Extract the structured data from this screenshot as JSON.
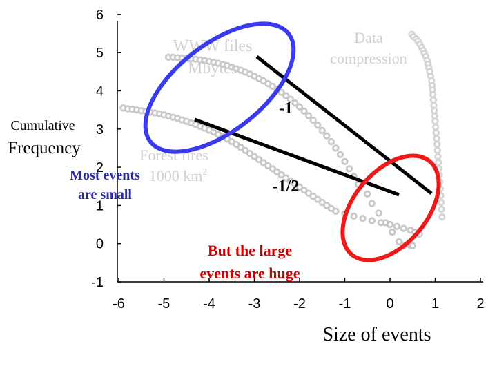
{
  "chart_data": {
    "type": "scatter",
    "title": "",
    "xlabel": "Size of events",
    "ylabel_line1": "Cumulative",
    "ylabel_line2": "Frequency",
    "xlim": [
      -6,
      2
    ],
    "ylim": [
      -1,
      6
    ],
    "xticks": [
      "-6",
      "-5",
      "-4",
      "-3",
      "-2",
      "-1",
      "0",
      "1",
      "2"
    ],
    "yticks": [
      "-1",
      "0",
      "1",
      "2",
      "3",
      "4",
      "5",
      "6"
    ],
    "grid": false,
    "series": [
      {
        "name": "WWW files Mbytes",
        "label_line1": "WWW files",
        "label_line2": "Mbytes",
        "color": "#c8c8c8",
        "x": [
          -4.9,
          -4.8,
          -4.7,
          -4.6,
          -4.5,
          -4.4,
          -4.3,
          -4.2,
          -4.1,
          -4.0,
          -3.9,
          -3.8,
          -3.7,
          -3.6,
          -3.5,
          -3.4,
          -3.3,
          -3.2,
          -3.1,
          -3.0,
          -2.9,
          -2.8,
          -2.7,
          -2.6,
          -2.5,
          -2.4,
          -2.3,
          -2.2,
          -2.1,
          -2.0,
          -1.9,
          -1.8,
          -1.7,
          -1.6,
          -1.5,
          -1.4,
          -1.3,
          -1.2,
          -1.1,
          -1.0,
          -0.9,
          -0.8,
          -0.7,
          -0.5,
          -0.4,
          -0.25,
          -0.1,
          0.05,
          0.2,
          0.3,
          0.45,
          0.5
        ],
        "y": [
          4.88,
          4.88,
          4.87,
          4.86,
          4.85,
          4.84,
          4.83,
          4.81,
          4.79,
          4.77,
          4.75,
          4.72,
          4.69,
          4.66,
          4.62,
          4.58,
          4.54,
          4.49,
          4.44,
          4.38,
          4.32,
          4.26,
          4.19,
          4.12,
          4.04,
          3.96,
          3.87,
          3.78,
          3.68,
          3.58,
          3.47,
          3.35,
          3.23,
          3.1,
          2.96,
          2.82,
          2.67,
          2.5,
          2.33,
          2.15,
          1.96,
          1.76,
          1.55,
          1.3,
          1.05,
          0.8,
          0.55,
          0.3,
          0.05,
          -0.05,
          -0.05,
          -0.05
        ]
      },
      {
        "name": "Forest fires 1000 km2",
        "label_line1": "Forest fires",
        "label_line2": "1000 km",
        "label_sup": "2",
        "color": "#c8c8c8",
        "x": [
          -5.9,
          -5.8,
          -5.7,
          -5.6,
          -5.5,
          -5.4,
          -5.3,
          -5.2,
          -5.1,
          -5.0,
          -4.9,
          -4.8,
          -4.7,
          -4.6,
          -4.5,
          -4.4,
          -4.3,
          -4.2,
          -4.1,
          -4.0,
          -3.9,
          -3.8,
          -3.7,
          -3.6,
          -3.5,
          -3.4,
          -3.3,
          -3.2,
          -3.1,
          -3.0,
          -2.9,
          -2.8,
          -2.7,
          -2.6,
          -2.5,
          -2.4,
          -2.3,
          -2.2,
          -2.1,
          -2.0,
          -1.9,
          -1.8,
          -1.7,
          -1.6,
          -1.5,
          -1.4,
          -1.3,
          -1.2,
          -1.0,
          -0.8,
          -0.6,
          -0.4,
          -0.2,
          0.0,
          0.15,
          0.3,
          0.45,
          0.55,
          0.65
        ],
        "y": [
          3.55,
          3.53,
          3.52,
          3.5,
          3.48,
          3.46,
          3.44,
          3.42,
          3.4,
          3.37,
          3.34,
          3.31,
          3.28,
          3.24,
          3.2,
          3.16,
          3.12,
          3.07,
          3.02,
          2.97,
          2.92,
          2.86,
          2.8,
          2.74,
          2.67,
          2.6,
          2.52,
          2.44,
          2.36,
          2.28,
          2.2,
          2.12,
          2.04,
          1.96,
          1.88,
          1.8,
          1.72,
          1.64,
          1.56,
          1.48,
          1.4,
          1.32,
          1.24,
          1.16,
          1.08,
          1.0,
          0.92,
          0.85,
          0.78,
          0.72,
          0.66,
          0.6,
          0.55,
          0.5,
          0.45,
          0.4,
          0.35,
          0.3,
          0.25
        ]
      },
      {
        "name": "Data compression",
        "label_line1": "Data",
        "label_line2": "compression",
        "color": "#d4d4d4",
        "x": [
          0.48,
          0.52,
          0.58,
          0.62,
          0.66,
          0.7,
          0.73,
          0.76,
          0.79,
          0.82,
          0.84,
          0.86,
          0.88,
          0.9,
          0.92,
          0.93,
          0.94,
          0.95,
          0.96,
          0.97,
          0.98,
          0.99,
          1.0,
          1.01,
          1.02,
          1.03,
          1.04,
          1.05,
          1.06,
          1.07,
          1.08,
          1.09,
          1.1,
          1.11,
          1.12,
          1.13,
          1.14,
          1.15
        ],
        "y": [
          5.48,
          5.42,
          5.36,
          5.3,
          5.22,
          5.14,
          5.06,
          4.98,
          4.9,
          4.8,
          4.7,
          4.6,
          4.5,
          4.38,
          4.26,
          4.14,
          4.02,
          3.9,
          3.76,
          3.62,
          3.48,
          3.34,
          3.2,
          3.05,
          2.9,
          2.75,
          2.6,
          2.44,
          2.28,
          2.12,
          1.96,
          1.8,
          1.62,
          1.44,
          1.26,
          1.08,
          0.9,
          0.7
        ]
      }
    ],
    "annotations": {
      "slope_steep": "-1",
      "slope_shallow": "-1/2",
      "small_events_line1": "Most events",
      "small_events_line2": "are small",
      "large_events_line1": "But the large",
      "large_events_line2": "events are huge"
    },
    "colors": {
      "blue_ellipse": "#3a3aee",
      "red_ellipse": "#ee1a1a",
      "fit_lines": "#000000",
      "most_events_text": "#2a2aa8",
      "large_events_text": "#cc0000",
      "axis": "#000000"
    }
  }
}
